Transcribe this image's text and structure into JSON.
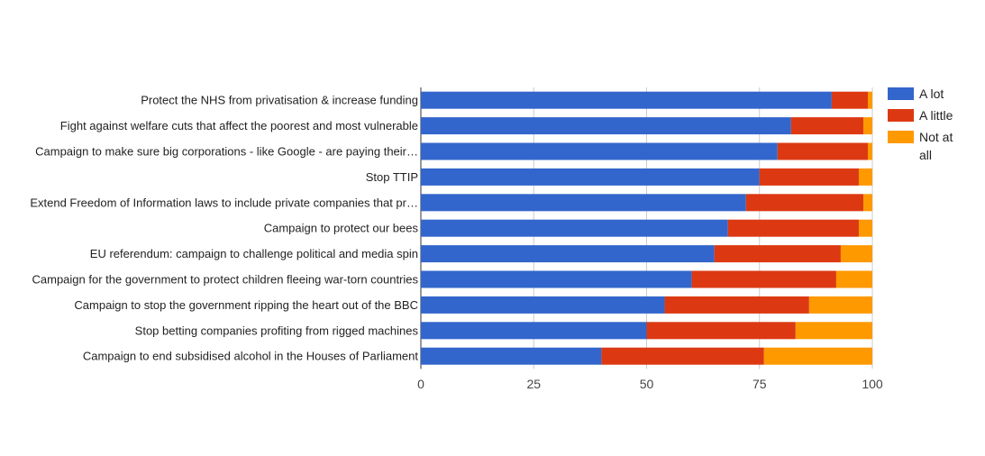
{
  "chart_data": {
    "type": "bar",
    "orientation": "horizontal",
    "stacked": true,
    "categories": [
      "Protect the NHS from privatisation & increase funding",
      "Fight against welfare cuts that affect the poorest and most vulnerable",
      "Campaign to make sure big corporations - like Google - are paying their…",
      "Stop TTIP",
      "Extend Freedom of Information laws to include private companies that pr…",
      "Campaign to protect our bees",
      "EU referendum: campaign to challenge political and media spin",
      "Campaign for the government to protect children fleeing war-torn countries",
      "Campaign to stop the government ripping the heart out of the BBC",
      "Stop betting companies profiting from rigged machines",
      "Campaign to end subsidised alcohol in the Houses of Parliament"
    ],
    "series": [
      {
        "name": "A lot",
        "color": "#3366cc",
        "values": [
          91,
          82,
          79,
          75,
          72,
          68,
          65,
          60,
          54,
          50,
          40
        ]
      },
      {
        "name": "A little",
        "color": "#dc3912",
        "values": [
          8,
          16,
          20,
          22,
          26,
          29,
          28,
          32,
          32,
          33,
          36
        ]
      },
      {
        "name": "Not at all",
        "color": "#ff9900",
        "values": [
          1,
          2,
          1,
          3,
          2,
          3,
          7,
          8,
          14,
          17,
          24
        ]
      }
    ],
    "xlim": [
      0,
      100
    ],
    "xticks": [
      "0",
      "25",
      "50",
      "75",
      "100"
    ],
    "xlabel": "",
    "ylabel": "",
    "title": "",
    "grid": true,
    "legend_position": "right"
  }
}
